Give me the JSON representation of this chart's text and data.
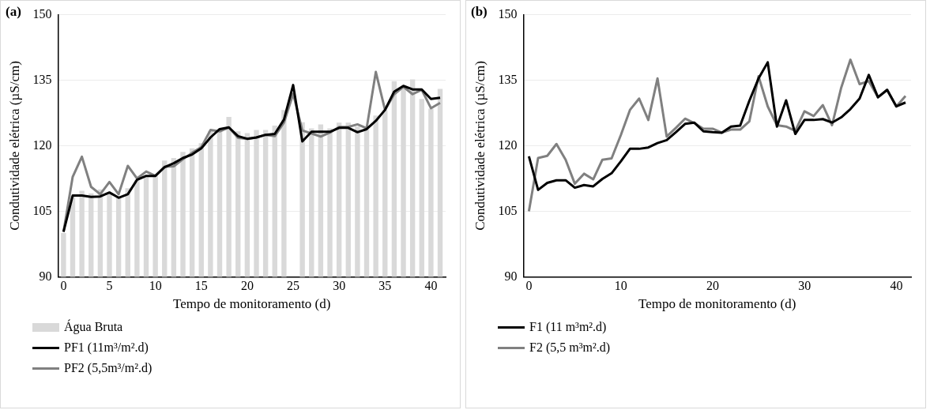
{
  "chart_data": [
    {
      "type": "bar",
      "xlabel": "Tempo de monitoramento (d)",
      "ylabel": "Condutividade elétrica (µS/cm)",
      "annotations": [
        "(a)"
      ],
      "x": [
        0,
        1,
        2,
        3,
        4,
        5,
        6,
        7,
        8,
        9,
        10,
        11,
        12,
        13,
        14,
        15,
        16,
        17,
        18,
        19,
        20,
        21,
        22,
        23,
        24,
        25,
        26,
        27,
        28,
        29,
        30,
        31,
        32,
        33,
        34,
        35,
        36,
        37,
        38,
        39,
        40,
        41
      ],
      "xlim": [
        -0.6,
        41.6
      ],
      "xticks": [
        0,
        5,
        10,
        15,
        20,
        25,
        30,
        35,
        40
      ],
      "ylim": [
        90,
        150
      ],
      "yticks": [
        90,
        105,
        120,
        135,
        150
      ],
      "grid": "y",
      "legend": "bottom left",
      "marker": "none",
      "series": [
        {
          "name": "Água Bruta",
          "type": "bar",
          "color": "#d9d9d9",
          "values": [
            100,
            108.5,
            109.7,
            109.1,
            110,
            109.1,
            108.4,
            110.3,
            112.2,
            112.8,
            113.1,
            116.6,
            117.2,
            118.6,
            119.4,
            120.6,
            123.4,
            123.8,
            126.6,
            123.3,
            122.9,
            123.6,
            123.6,
            124.6,
            128.2,
            null,
            125.4,
            124,
            124.9,
            124,
            125.3,
            125.3,
            124.4,
            123.8,
            126.9,
            128.2,
            134.8,
            133.5,
            135.2,
            130.7,
            128.5,
            133
          ]
        },
        {
          "name": "PF1 (11m³/m².d)",
          "type": "line",
          "color": "#000000",
          "values": [
            100.3,
            108.6,
            108.6,
            108.3,
            108.4,
            109.3,
            108.1,
            108.9,
            112.2,
            113.1,
            113.1,
            115.1,
            116,
            117.2,
            118,
            119.4,
            121.9,
            123.8,
            124.2,
            122.2,
            121.6,
            121.9,
            122.5,
            122.7,
            126,
            133.9,
            121,
            123.2,
            123.2,
            123.2,
            124.1,
            124.1,
            123.1,
            123.8,
            125.7,
            128.2,
            132.4,
            133.7,
            132.9,
            132.9,
            130.7,
            131
          ]
        },
        {
          "name": "PF2 (5,5m³/m².d)",
          "type": "line",
          "color": "#808080",
          "values": [
            100.3,
            112.9,
            117.5,
            110.6,
            108.9,
            111.7,
            108.9,
            115.4,
            112.5,
            114.1,
            113.1,
            115.2,
            115.3,
            116.9,
            118.4,
            119.7,
            123.6,
            123.3,
            124.2,
            121.8,
            121.6,
            121.9,
            122.5,
            122.2,
            125.3,
            131.9,
            123.5,
            122.8,
            122.1,
            123,
            124.3,
            124.3,
            124.9,
            124,
            136.9,
            128.2,
            131.8,
            133.5,
            131.8,
            132.8,
            128.6,
            129.8
          ]
        }
      ]
    },
    {
      "type": "line",
      "xlabel": "Tempo de monitoramento (d)",
      "ylabel": "Condutividade elétrica (µS/cm)",
      "annotations": [
        "(b)"
      ],
      "x": [
        0,
        1,
        2,
        3,
        4,
        5,
        6,
        7,
        8,
        9,
        10,
        11,
        12,
        13,
        14,
        15,
        16,
        17,
        18,
        19,
        20,
        21,
        22,
        23,
        24,
        25,
        26,
        27,
        28,
        29,
        30,
        31,
        32,
        33,
        34,
        35,
        36,
        37,
        38,
        39,
        40,
        41
      ],
      "xlim": [
        -0.6,
        41.6
      ],
      "xticks": [
        0,
        10,
        20,
        30,
        40
      ],
      "ylim": [
        90,
        150
      ],
      "yticks": [
        90,
        105,
        120,
        135,
        150
      ],
      "grid": "y",
      "legend": "bottom left",
      "marker": "none",
      "series": [
        {
          "name": "F1 (11 m³m².d)",
          "color": "#000000",
          "values": [
            117.6,
            109.9,
            111.5,
            112.1,
            112.1,
            110.4,
            111,
            110.7,
            112.4,
            113.7,
            116.4,
            119.3,
            119.3,
            119.6,
            120.6,
            121.3,
            123.1,
            125,
            125.3,
            123.3,
            123.1,
            123,
            124.4,
            124.6,
            130.3,
            135.4,
            139.1,
            124.4,
            130.4,
            122.7,
            125.9,
            125.9,
            126.1,
            125.3,
            126.5,
            128.4,
            130.8,
            136.2,
            131.1,
            132.8,
            129,
            129.9
          ]
        },
        {
          "name": "F2 (5,5 m³m².d)",
          "color": "#808080",
          "values": [
            105,
            117.2,
            117.7,
            120.4,
            116.8,
            111.3,
            113.6,
            112.3,
            116.8,
            117.1,
            122.4,
            128.2,
            130.8,
            125.9,
            135.4,
            122.1,
            124.1,
            126.2,
            125.2,
            123.9,
            123.9,
            123,
            123.7,
            123.7,
            125.6,
            135.9,
            129,
            124.7,
            124.4,
            123.4,
            127.9,
            126.8,
            129.3,
            124.7,
            133.3,
            139.7,
            134.1,
            134.8,
            131.1,
            132.8,
            129,
            131.4
          ]
        }
      ]
    }
  ]
}
